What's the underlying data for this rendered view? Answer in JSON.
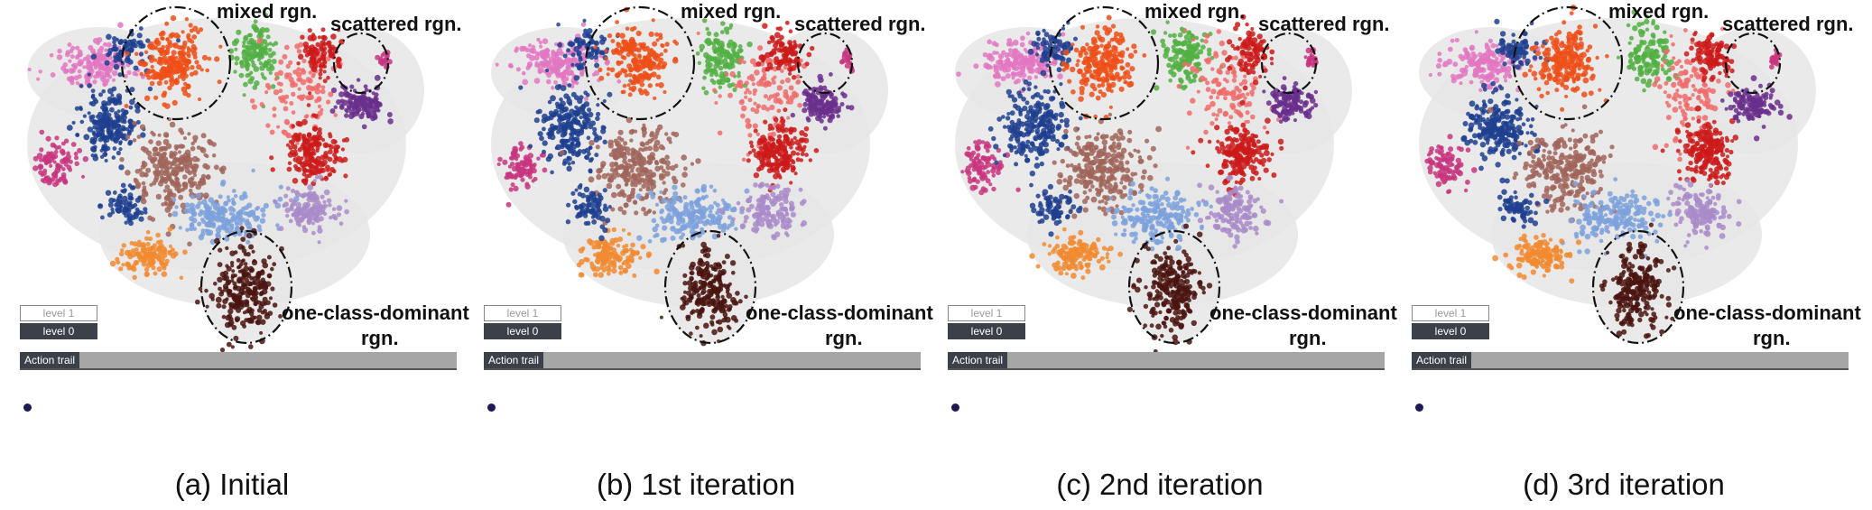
{
  "annotations": {
    "mixed": "mixed rgn.",
    "scattered": "scattered rgn.",
    "dominant_line1": "one-class-dominant",
    "dominant_line2": "rgn."
  },
  "levels": {
    "level1": "level 1",
    "level0": "level 0"
  },
  "action_trail": "Action trail",
  "panels": [
    {
      "caption": "(a) Initial"
    },
    {
      "caption": "(b) 1st iteration"
    },
    {
      "caption": "(c) 2nd iteration"
    },
    {
      "caption": "(d) 3rd iteration"
    }
  ],
  "colors": {
    "pink": "#e377c2",
    "magenta": "#c8357f",
    "dark_blue": "#1f3f8f",
    "orange_red": "#ee4f17",
    "green": "#52b043",
    "salmon": "#f26b6b",
    "red": "#cc1a1a",
    "purple": "#6a2e8c",
    "brown": "#a0655a",
    "light_blue": "#7da1dc",
    "lavender": "#a98bc9",
    "orange": "#f28a30",
    "dark_brown": "#4a140f",
    "background_blob": "#e6e6e6"
  }
}
